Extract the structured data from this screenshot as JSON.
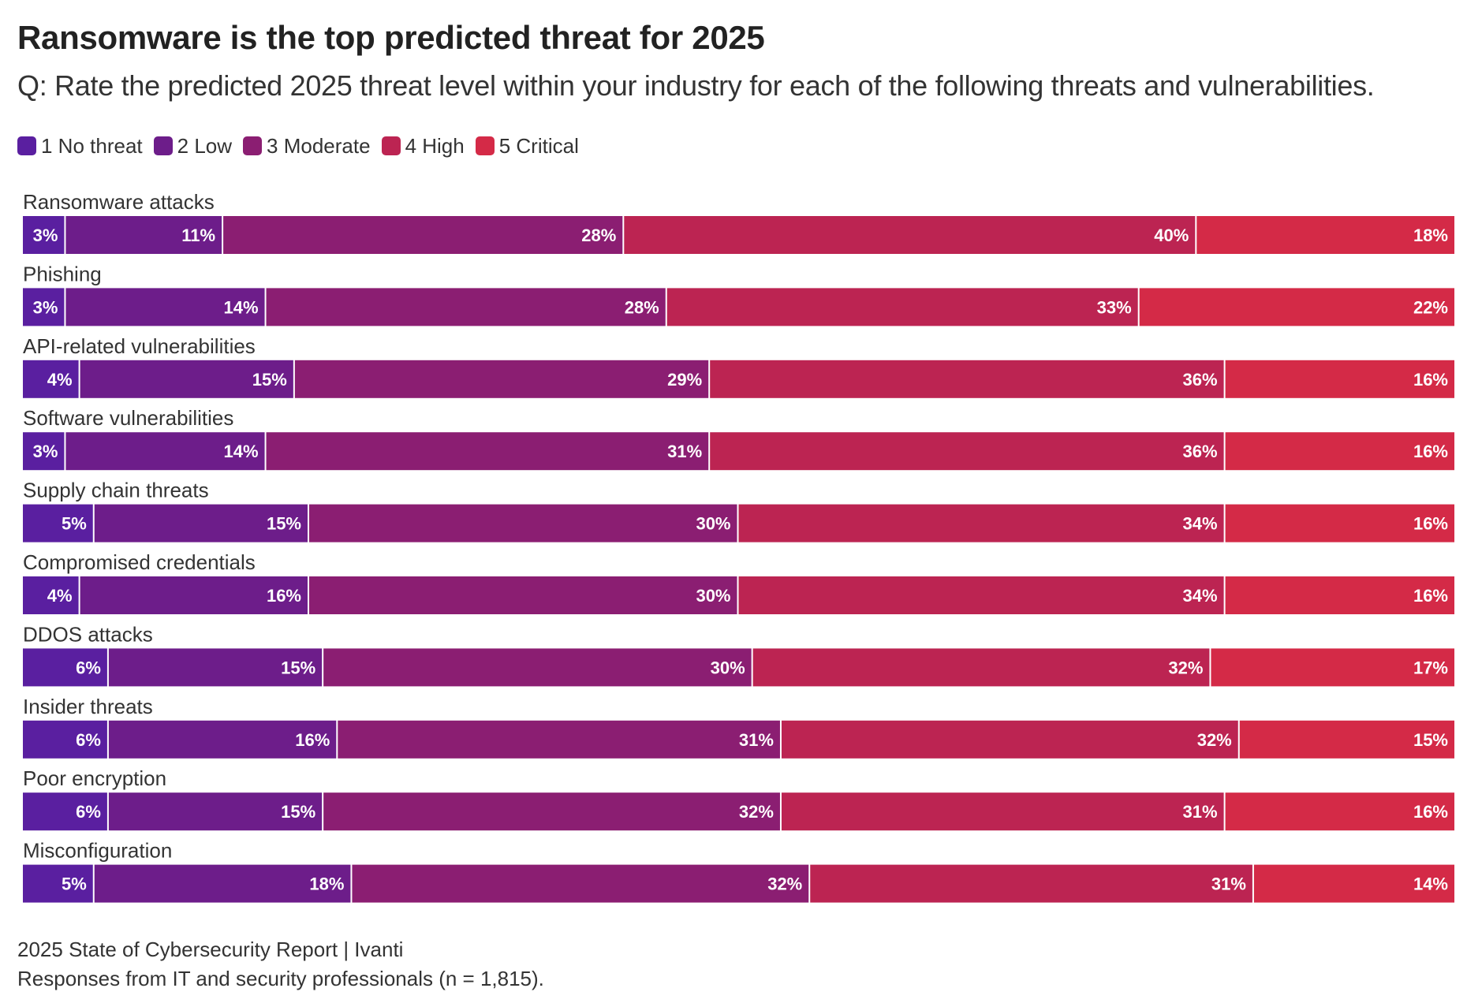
{
  "title": "Ransomware is the top predicted threat for 2025",
  "subtitle": "Q: Rate the predicted 2025 threat level within your industry for each of the following threats and vulnerabilities.",
  "legend": [
    {
      "label": "1 No threat",
      "color": "#5a1fa0"
    },
    {
      "label": "2 Low",
      "color": "#6d1d8a"
    },
    {
      "label": "3 Moderate",
      "color": "#8b1e72"
    },
    {
      "label": "4 High",
      "color": "#bc2452"
    },
    {
      "label": "5 Critical",
      "color": "#d42a47"
    }
  ],
  "chart_data": {
    "type": "bar",
    "orientation": "horizontal",
    "stacked": true,
    "title": "Ransomware is the top predicted threat for 2025",
    "subtitle": "Q: Rate the predicted 2025 threat level within your industry for each of the following threats and vulnerabilities.",
    "categories": [
      "Ransomware attacks",
      "Phishing",
      "API-related vulnerabilities",
      "Software vulnerabilities",
      "Supply chain threats",
      "Compromised credentials",
      "DDOS attacks",
      "Insider threats",
      "Poor encryption",
      "Misconfiguration"
    ],
    "series": [
      {
        "name": "1 No threat",
        "color": "#5a1fa0",
        "values": [
          3,
          3,
          4,
          3,
          5,
          4,
          6,
          6,
          6,
          5
        ]
      },
      {
        "name": "2 Low",
        "color": "#6d1d8a",
        "values": [
          11,
          14,
          15,
          14,
          15,
          16,
          15,
          16,
          15,
          18
        ]
      },
      {
        "name": "3 Moderate",
        "color": "#8b1e72",
        "values": [
          28,
          28,
          29,
          31,
          30,
          30,
          30,
          31,
          32,
          32
        ]
      },
      {
        "name": "4 High",
        "color": "#bc2452",
        "values": [
          40,
          33,
          36,
          36,
          34,
          34,
          32,
          32,
          31,
          31
        ]
      },
      {
        "name": "5 Critical",
        "color": "#d42a47",
        "values": [
          18,
          22,
          16,
          16,
          16,
          16,
          17,
          15,
          16,
          14
        ]
      }
    ],
    "value_suffix": "%",
    "legend_position": "top-left"
  },
  "footer": {
    "source": "2025 State of Cybersecurity Report | Ivanti",
    "note": "Responses from IT and security professionals (n = 1,815)."
  }
}
